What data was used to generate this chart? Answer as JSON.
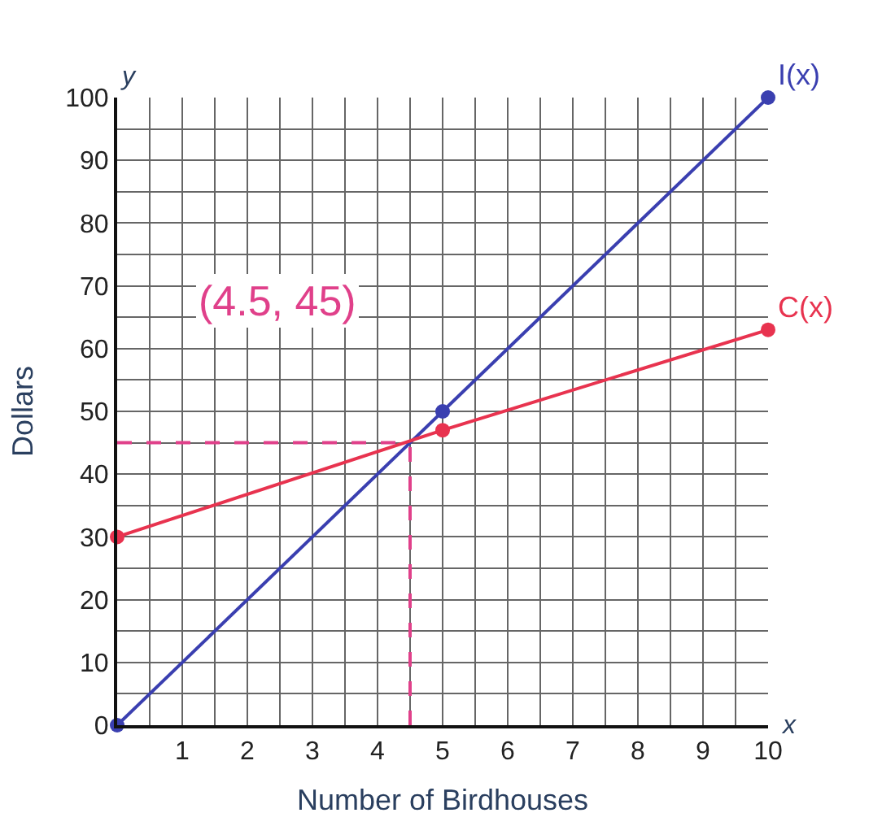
{
  "chart_data": {
    "type": "line",
    "xlabel": "Number of Birdhouses",
    "ylabel": "Dollars",
    "series": [
      {
        "name": "I(x)",
        "color": "#3a3fb0",
        "x": [
          0,
          5,
          10
        ],
        "values": [
          0,
          50,
          100
        ]
      },
      {
        "name": "C(x)",
        "color": "#e8334f",
        "x": [
          0,
          5,
          10
        ],
        "values": [
          30,
          47,
          63
        ]
      }
    ],
    "xlim": [
      0,
      10
    ],
    "ylim": [
      0,
      100
    ],
    "xticks": [
      {
        "value": 0,
        "label": null
      },
      {
        "value": 0.5,
        "label": null
      },
      1,
      {
        "value": 1.5,
        "label": null
      },
      2,
      {
        "value": 2.5,
        "label": null
      },
      3,
      {
        "value": 3.5,
        "label": null
      },
      4,
      {
        "value": 4.5,
        "label": null
      },
      5,
      {
        "value": 5.5,
        "label": null
      },
      6,
      {
        "value": 6.5,
        "label": null
      },
      7,
      {
        "value": 7.5,
        "label": null
      },
      8,
      {
        "value": 8.5,
        "label": null
      },
      9,
      {
        "value": 9.5,
        "label": null
      },
      10
    ],
    "yticks": [
      0,
      {
        "value": 5,
        "label": null
      },
      10,
      {
        "value": 15,
        "label": null
      },
      20,
      {
        "value": 25,
        "label": null
      },
      30,
      {
        "value": 35,
        "label": null
      },
      40,
      {
        "value": 45,
        "label": null
      },
      50,
      {
        "value": 55,
        "label": null
      },
      60,
      {
        "value": 65,
        "label": null
      },
      70,
      {
        "value": 75,
        "label": null
      },
      80,
      {
        "value": 85,
        "label": null
      },
      90,
      {
        "value": 95,
        "label": null
      },
      100
    ],
    "ref_lines": [
      {
        "axis": "x",
        "value": 4.5,
        "label": null,
        "color": "#e0408a",
        "line_style": "dashed"
      },
      {
        "axis": "y",
        "value": 45,
        "label": null,
        "color": "#e0408a",
        "line_style": "dashed"
      }
    ],
    "annotations": [
      "(4.5, 45)",
      "x",
      "y"
    ],
    "grid": true,
    "legend": false,
    "marker": "circle",
    "line_style": "solid"
  }
}
